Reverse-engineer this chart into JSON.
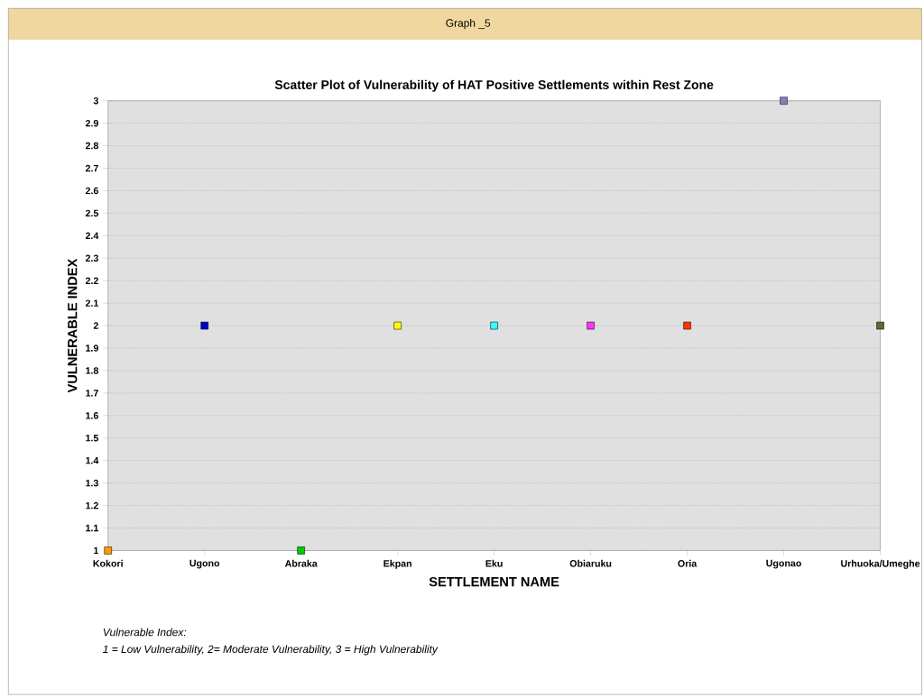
{
  "chart_data": {
    "type": "scatter",
    "title": "Scatter Plot of Vulnerability of HAT Positive Settlements within Rest Zone",
    "xlabel": "SETTLEMENT NAME",
    "ylabel": "VULNERABLE INDEX",
    "categories": [
      "Kokori",
      "Ugono",
      "Abraka",
      "Ekpan",
      "Eku",
      "Obiaruku",
      "Oria",
      "Ugonao",
      "Urhuoka/Umeghe"
    ],
    "values": [
      1,
      2,
      1,
      2,
      2,
      2,
      2,
      3,
      2
    ],
    "colors": [
      "#ff9900",
      "#0000cc",
      "#00cc00",
      "#ffff00",
      "#33ffff",
      "#ff33ff",
      "#ff3300",
      "#8080c0",
      "#666633"
    ],
    "ylim": [
      1,
      3
    ],
    "yticks": [
      1,
      1.1,
      1.2,
      1.3,
      1.4,
      1.5,
      1.6,
      1.7,
      1.8,
      1.9,
      2,
      2.1,
      2.2,
      2.3,
      2.4,
      2.5,
      2.6,
      2.7,
      2.8,
      2.9,
      3
    ],
    "grid": "y",
    "marker": "square",
    "annotations": [
      "Graph _5",
      "Vulnerable Index:",
      "1 = Low Vulnerability, 2= Moderate Vulnerability, 3 = High Vulnerability"
    ]
  }
}
